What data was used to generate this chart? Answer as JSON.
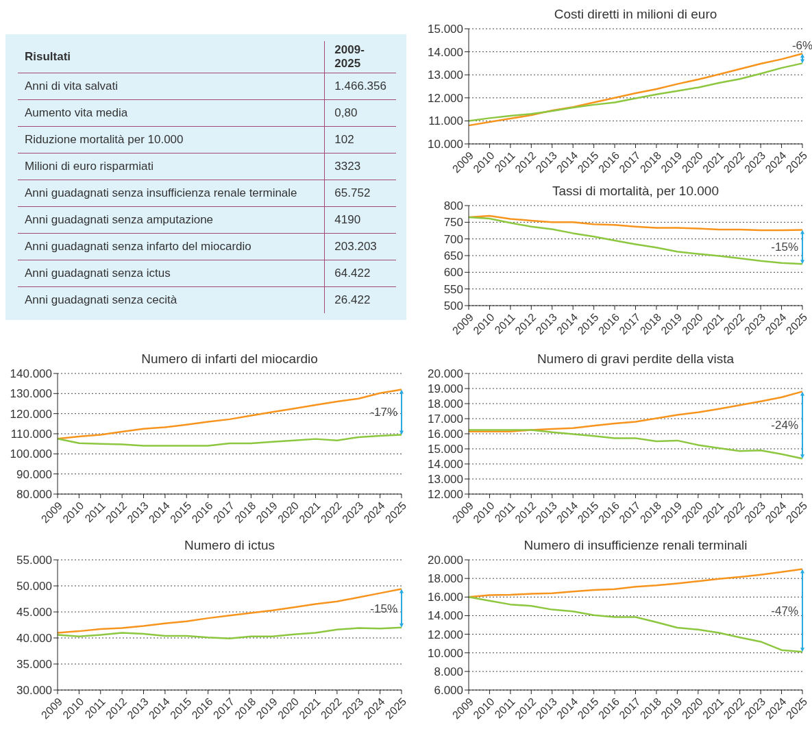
{
  "chart_data": [
    {
      "type": "other",
      "annotations": [
        "Risultati",
        "2009-2025",
        "Anni di vita salvati",
        "1.466.356",
        "Aumento vita media",
        "0,80",
        "Riduzione mortalità per 10.000",
        "102",
        "Milioni di euro risparmiati",
        "3323",
        "Anni guadagnati senza insufficienza renale terminale",
        "65.752",
        "Anni guadagnati senza amputazione",
        "4190",
        "Anni guadagnati senza infarto del miocardio",
        "203.203",
        "Anni guadagnati senza ictus",
        "64.422",
        "Anni guadagnati senza cecità",
        "26.422"
      ]
    },
    {
      "type": "line",
      "title": "Costi diretti in milioni di euro",
      "categories": [
        "2009",
        "2010",
        "2011",
        "2012",
        "2013",
        "2014",
        "2015",
        "2016",
        "2017",
        "2018",
        "2019",
        "2020",
        "2021",
        "2022",
        "2023",
        "2024",
        "2025"
      ],
      "series": [
        {
          "color": "#f7941d",
          "values": [
            10800,
            10950,
            11100,
            11250,
            11450,
            11600,
            11800,
            12000,
            12200,
            12380,
            12600,
            12800,
            13020,
            13250,
            13480,
            13680,
            13920
          ]
        },
        {
          "color": "#8dc63f",
          "values": [
            11000,
            11120,
            11220,
            11300,
            11430,
            11580,
            11700,
            11800,
            11980,
            12150,
            12300,
            12450,
            12650,
            12820,
            13050,
            13300,
            13500
          ]
        }
      ],
      "ylim": [
        10000,
        15000
      ],
      "yticks": [
        {
          "value": 10000,
          "label": "10.000"
        },
        {
          "value": 11000,
          "label": "11.000"
        },
        {
          "value": 12000,
          "label": "12.000"
        },
        {
          "value": 13000,
          "label": "13.000"
        },
        {
          "value": 14000,
          "label": "14.000"
        },
        {
          "value": 15000,
          "label": "15.000"
        }
      ],
      "grid": "y",
      "annotations": [
        "-6%"
      ]
    },
    {
      "type": "line",
      "title": "Tassi di mortalità, per 10.000",
      "categories": [
        "2009",
        "2010",
        "2011",
        "2012",
        "2013",
        "2014",
        "2015",
        "2016",
        "2017",
        "2018",
        "2019",
        "2020",
        "2021",
        "2022",
        "2023",
        "2024",
        "2025"
      ],
      "series": [
        {
          "color": "#f7941d",
          "values": [
            765,
            769,
            760,
            755,
            750,
            750,
            744,
            742,
            737,
            733,
            733,
            731,
            728,
            728,
            726,
            726,
            727
          ]
        },
        {
          "color": "#8dc63f",
          "values": [
            765,
            761,
            748,
            737,
            729,
            717,
            707,
            695,
            684,
            674,
            662,
            655,
            649,
            642,
            634,
            628,
            625
          ]
        }
      ],
      "ylim": [
        500,
        800
      ],
      "yticks": [
        500,
        550,
        600,
        650,
        700,
        750,
        800
      ],
      "grid": "y",
      "annotations": [
        "-15%"
      ]
    },
    {
      "type": "line",
      "title": "Numero di infarti del miocardio",
      "categories": [
        "2009",
        "2010",
        "2011",
        "2012",
        "2013",
        "2014",
        "2015",
        "2016",
        "2017",
        "2018",
        "2019",
        "2020",
        "2021",
        "2022",
        "2023",
        "2024",
        "2025"
      ],
      "series": [
        {
          "color": "#f7941d",
          "values": [
            107500,
            108600,
            109500,
            111000,
            112500,
            113200,
            114500,
            116000,
            117200,
            119000,
            120800,
            122500,
            124300,
            126000,
            127500,
            130200,
            132000
          ]
        },
        {
          "color": "#8dc63f",
          "values": [
            107500,
            105300,
            105000,
            104700,
            104000,
            104000,
            104000,
            104000,
            105200,
            105200,
            106000,
            106700,
            107400,
            106700,
            108300,
            109000,
            109500
          ]
        }
      ],
      "ylim": [
        80000,
        140000
      ],
      "yticks": [
        {
          "value": 80000,
          "label": "80.000"
        },
        {
          "value": 90000,
          "label": "90.000"
        },
        {
          "value": 100000,
          "label": "100.000"
        },
        {
          "value": 110000,
          "label": "110.000"
        },
        {
          "value": 120000,
          "label": "120.000"
        },
        {
          "value": 130000,
          "label": "130.000"
        },
        {
          "value": 140000,
          "label": "140.000"
        }
      ],
      "grid": "y",
      "annotations": [
        "-17%"
      ]
    },
    {
      "type": "line",
      "title": "Numero di gravi perdite della vista",
      "categories": [
        "2009",
        "2010",
        "2011",
        "2012",
        "2013",
        "2014",
        "2015",
        "2016",
        "2017",
        "2018",
        "2019",
        "2020",
        "2021",
        "2022",
        "2023",
        "2024",
        "2025"
      ],
      "series": [
        {
          "color": "#f7941d",
          "values": [
            16150,
            16150,
            16150,
            16250,
            16320,
            16380,
            16530,
            16680,
            16800,
            17020,
            17250,
            17420,
            17650,
            17900,
            18150,
            18420,
            18800
          ]
        },
        {
          "color": "#8dc63f",
          "values": [
            16250,
            16250,
            16250,
            16250,
            16100,
            15980,
            15850,
            15700,
            15700,
            15500,
            15550,
            15250,
            15050,
            14850,
            14900,
            14650,
            14350
          ]
        }
      ],
      "ylim": [
        12000,
        20000
      ],
      "yticks": [
        {
          "value": 12000,
          "label": "12.000"
        },
        {
          "value": 13000,
          "label": "13.000"
        },
        {
          "value": 14000,
          "label": "14.000"
        },
        {
          "value": 15000,
          "label": "15.000"
        },
        {
          "value": 16000,
          "label": "16.000"
        },
        {
          "value": 17000,
          "label": "17.000"
        },
        {
          "value": 18000,
          "label": "18.000"
        },
        {
          "value": 19000,
          "label": "19.000"
        },
        {
          "value": 20000,
          "label": "20.000"
        }
      ],
      "grid": "y",
      "annotations": [
        "-24%"
      ]
    },
    {
      "type": "line",
      "title": "Numero di ictus",
      "categories": [
        "2009",
        "2010",
        "2011",
        "2012",
        "2013",
        "2014",
        "2015",
        "2016",
        "2017",
        "2018",
        "2019",
        "2020",
        "2021",
        "2022",
        "2023",
        "2024",
        "2025"
      ],
      "series": [
        {
          "color": "#f7941d",
          "values": [
            41000,
            41300,
            41700,
            41900,
            42300,
            42800,
            43200,
            43800,
            44300,
            44800,
            45300,
            45900,
            46500,
            47000,
            47800,
            48600,
            49400
          ]
        },
        {
          "color": "#8dc63f",
          "values": [
            40600,
            40300,
            40600,
            41000,
            40800,
            40400,
            40400,
            40100,
            39900,
            40300,
            40300,
            40700,
            41000,
            41600,
            41900,
            41800,
            42000
          ]
        }
      ],
      "ylim": [
        30000,
        55000
      ],
      "yticks": [
        {
          "value": 30000,
          "label": "30.000"
        },
        {
          "value": 35000,
          "label": "35.000"
        },
        {
          "value": 40000,
          "label": "40.000"
        },
        {
          "value": 45000,
          "label": "45.000"
        },
        {
          "value": 50000,
          "label": "50.000"
        },
        {
          "value": 55000,
          "label": "55.000"
        }
      ],
      "grid": "y",
      "annotations": [
        "-15%"
      ]
    },
    {
      "type": "line",
      "title": "Numero di insufficienze renali terminali",
      "categories": [
        "2009",
        "2010",
        "2011",
        "2012",
        "2013",
        "2014",
        "2015",
        "2016",
        "2017",
        "2018",
        "2019",
        "2020",
        "2021",
        "2022",
        "2023",
        "2024",
        "2025"
      ],
      "series": [
        {
          "color": "#f7941d",
          "values": [
            16000,
            16200,
            16250,
            16350,
            16400,
            16600,
            16750,
            16850,
            17100,
            17250,
            17450,
            17700,
            17950,
            18150,
            18400,
            18700,
            19000
          ]
        },
        {
          "color": "#8dc63f",
          "values": [
            16000,
            15600,
            15200,
            15050,
            14650,
            14450,
            14050,
            13850,
            13850,
            13300,
            12700,
            12500,
            12150,
            11650,
            11200,
            10300,
            10100
          ]
        }
      ],
      "ylim": [
        6000,
        20000
      ],
      "yticks": [
        {
          "value": 6000,
          "label": "6.000"
        },
        {
          "value": 8000,
          "label": "8.000"
        },
        {
          "value": 10000,
          "label": "10.000"
        },
        {
          "value": 12000,
          "label": "12.000"
        },
        {
          "value": 14000,
          "label": "14.000"
        },
        {
          "value": 16000,
          "label": "16.000"
        },
        {
          "value": 18000,
          "label": "18.000"
        },
        {
          "value": 20000,
          "label": "20.000"
        }
      ],
      "grid": "y",
      "annotations": [
        "-47%"
      ]
    }
  ]
}
